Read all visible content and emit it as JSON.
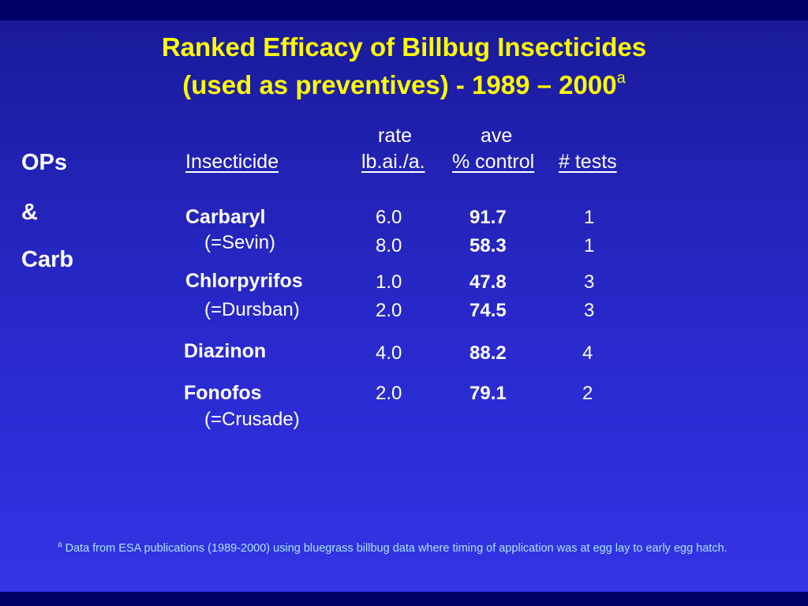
{
  "title": {
    "line1": "Ranked Efficacy of Billbug Insecticides",
    "line2": "(used as preventives) - 1989 – 2000",
    "superscript": "a"
  },
  "side_labels": [
    "OPs",
    "&",
    "Carb"
  ],
  "headers": {
    "rate_top": "rate",
    "rate_bottom": "lb.ai./a.",
    "ave_top": "ave",
    "ave_bottom": "% control",
    "insecticide": "Insecticide",
    "tests": "# tests"
  },
  "rows": [
    {
      "name": "Carbaryl",
      "alias": "(=Sevin)"
    },
    {
      "name": "Chlorpyrifos",
      "alias": "(=Dursban)"
    },
    {
      "name": "Diazinon"
    },
    {
      "name": "Fonofos",
      "alias": "(=Crusade)"
    }
  ],
  "values": [
    {
      "rate": "6.0",
      "control": "91.7",
      "tests": "1"
    },
    {
      "rate": "8.0",
      "control": "58.3",
      "tests": "1"
    },
    {
      "rate": "1.0",
      "control": "47.8",
      "tests": "3"
    },
    {
      "rate": "2.0",
      "control": "74.5",
      "tests": "3"
    },
    {
      "rate": "4.0",
      "control": "88.2",
      "tests": "4"
    },
    {
      "rate": "2.0",
      "control": "79.1",
      "tests": "2"
    }
  ],
  "footnote": {
    "marker": "a",
    "text": " Data from ESA publications (1989-2000) using bluegrass billbug data where timing of application was at egg lay to early egg hatch."
  },
  "colors": {
    "title": "#ffff00",
    "body_text": "#ffffff",
    "footnote": "#a9e4ff",
    "background_top": "#1a1a9a",
    "background_bottom": "#3434e6",
    "frame": "#000066"
  }
}
